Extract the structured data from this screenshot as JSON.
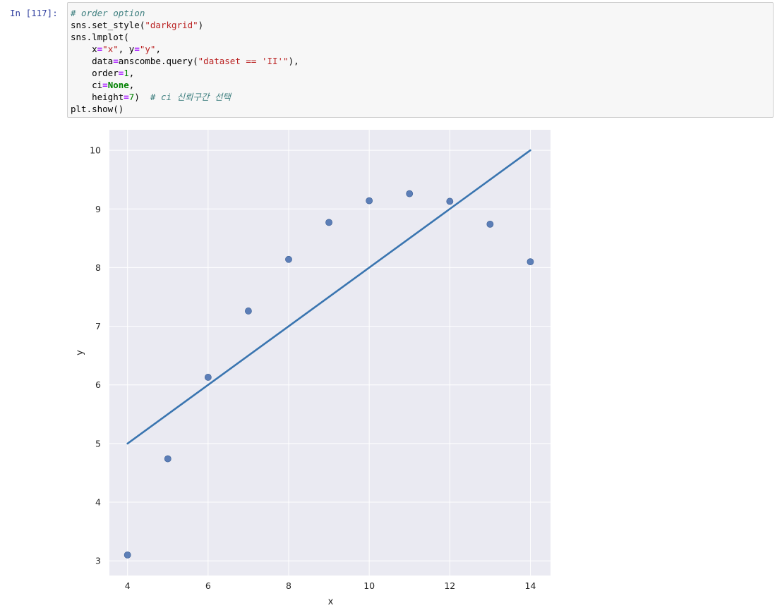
{
  "cell": {
    "prompt": "In [117]:",
    "code_lines": [
      [
        {
          "t": "# order option",
          "c": "cm"
        }
      ],
      [
        {
          "t": "sns.set_style(",
          "c": ""
        },
        {
          "t": "\"darkgrid\"",
          "c": "st"
        },
        {
          "t": ")",
          "c": ""
        }
      ],
      [
        {
          "t": "sns.lmplot(",
          "c": ""
        }
      ],
      [
        {
          "t": "    x",
          "c": ""
        },
        {
          "t": "=",
          "c": "op"
        },
        {
          "t": "\"x\"",
          "c": "st"
        },
        {
          "t": ", y",
          "c": ""
        },
        {
          "t": "=",
          "c": "op"
        },
        {
          "t": "\"y\"",
          "c": "st"
        },
        {
          "t": ",",
          "c": ""
        }
      ],
      [
        {
          "t": "    data",
          "c": ""
        },
        {
          "t": "=",
          "c": "op"
        },
        {
          "t": "anscombe.query(",
          "c": ""
        },
        {
          "t": "\"dataset == 'II'\"",
          "c": "st"
        },
        {
          "t": "),",
          "c": ""
        }
      ],
      [
        {
          "t": "    order",
          "c": ""
        },
        {
          "t": "=",
          "c": "op"
        },
        {
          "t": "1",
          "c": "nm"
        },
        {
          "t": ",",
          "c": ""
        }
      ],
      [
        {
          "t": "    ci",
          "c": ""
        },
        {
          "t": "=",
          "c": "op"
        },
        {
          "t": "None",
          "c": "kw"
        },
        {
          "t": ",",
          "c": ""
        }
      ],
      [
        {
          "t": "    height",
          "c": ""
        },
        {
          "t": "=",
          "c": "op"
        },
        {
          "t": "7",
          "c": "nm"
        },
        {
          "t": ")  ",
          "c": ""
        },
        {
          "t": "# ci 신뢰구간 선택",
          "c": "cm"
        }
      ],
      [
        {
          "t": "plt.show()",
          "c": ""
        }
      ]
    ]
  },
  "colors": {
    "plot_bg": "#eaeaf2",
    "grid": "#ffffff",
    "series": "#4c72b0",
    "line": "#3a75b0",
    "tick_text": "#262626"
  },
  "chart_data": {
    "type": "scatter",
    "xlabel": "x",
    "ylabel": "y",
    "xlim": [
      3.55,
      14.5
    ],
    "ylim": [
      2.75,
      10.35
    ],
    "xticks": [
      4,
      6,
      8,
      10,
      12,
      14
    ],
    "yticks": [
      3,
      4,
      5,
      6,
      7,
      8,
      9,
      10
    ],
    "grid": true,
    "points": [
      {
        "x": 4,
        "y": 3.1
      },
      {
        "x": 5,
        "y": 4.74
      },
      {
        "x": 6,
        "y": 6.13
      },
      {
        "x": 7,
        "y": 7.26
      },
      {
        "x": 8,
        "y": 8.14
      },
      {
        "x": 9,
        "y": 8.77
      },
      {
        "x": 10,
        "y": 9.14
      },
      {
        "x": 11,
        "y": 9.26
      },
      {
        "x": 12,
        "y": 9.13
      },
      {
        "x": 13,
        "y": 8.74
      },
      {
        "x": 14,
        "y": 8.1
      }
    ],
    "regression_line": {
      "x": [
        4,
        14
      ],
      "y": [
        5.0,
        10.0
      ]
    }
  }
}
